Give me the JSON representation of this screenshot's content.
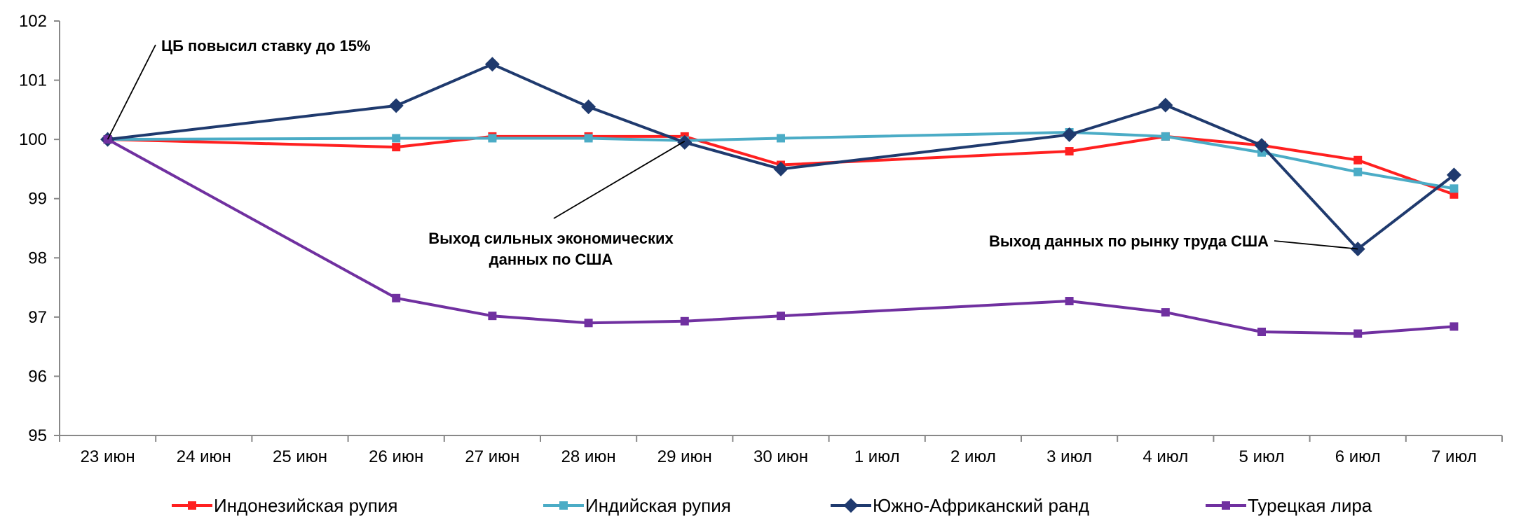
{
  "chart_data": {
    "type": "line",
    "title": "",
    "xlabel": "",
    "ylabel": "",
    "ylim": [
      95,
      102
    ],
    "yticks": [
      95,
      96,
      97,
      98,
      99,
      100,
      101,
      102
    ],
    "categories": [
      "23 июн",
      "24 июн",
      "25 июн",
      "26 июн",
      "27 июн",
      "28 июн",
      "29 июн",
      "30 июн",
      "1 июл",
      "2 июл",
      "3 июл",
      "4 июл",
      "5 июл",
      "6 июл",
      "7 июл"
    ],
    "grid": false,
    "legend_position": "bottom",
    "series": [
      {
        "name": "Индонезийская рупия",
        "color": "#ff2020",
        "marker": "square",
        "values": [
          100.0,
          null,
          null,
          99.87,
          100.05,
          100.05,
          100.05,
          99.57,
          null,
          null,
          99.8,
          100.05,
          99.9,
          99.65,
          99.07
        ]
      },
      {
        "name": "Индийская рупия",
        "color": "#4bacc6",
        "marker": "square",
        "values": [
          100.0,
          null,
          null,
          100.02,
          100.02,
          100.02,
          99.98,
          100.02,
          null,
          null,
          100.12,
          100.05,
          99.78,
          99.45,
          99.17
        ]
      },
      {
        "name": "Южно-Африканский ранд",
        "color": "#1f3a6e",
        "marker": "diamond",
        "values": [
          100.0,
          null,
          null,
          100.57,
          101.27,
          100.55,
          99.95,
          99.5,
          null,
          null,
          100.08,
          100.58,
          99.9,
          98.15,
          99.4
        ]
      },
      {
        "name": "Турецкая лира",
        "color": "#7030a0",
        "marker": "square",
        "values": [
          100.0,
          null,
          null,
          97.32,
          97.02,
          96.9,
          96.93,
          97.02,
          null,
          null,
          97.27,
          97.08,
          96.75,
          96.72,
          96.84
        ]
      }
    ],
    "annotations": [
      {
        "lines": [
          "ЦБ повысил ставку до 15%"
        ],
        "target_category": "23 июн",
        "target_value": 100.0
      },
      {
        "lines": [
          "Выход сильных экономических",
          "данных по США"
        ],
        "target_category": "29 июн",
        "target_value": 99.97
      },
      {
        "lines": [
          "Выход данных по рынку труда США"
        ],
        "target_category": "6 июл",
        "target_value": 98.15
      }
    ]
  }
}
